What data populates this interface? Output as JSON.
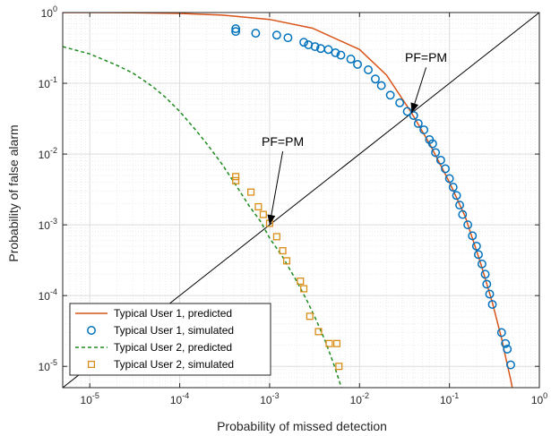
{
  "chart_data": {
    "type": "scatter",
    "title": "",
    "xlabel": "Probability of missed detection",
    "ylabel": "Probability of false alarm",
    "xscale": "log",
    "yscale": "log",
    "xlim": [
      5e-06,
      1
    ],
    "ylim": [
      5e-06,
      1
    ],
    "grid": true,
    "legend_position": "bottom-left",
    "xticks": [
      {
        "value": 1e-05,
        "base": "10",
        "exp": "-5"
      },
      {
        "value": 0.0001,
        "base": "10",
        "exp": "-4"
      },
      {
        "value": 0.001,
        "base": "10",
        "exp": "-3"
      },
      {
        "value": 0.01,
        "base": "10",
        "exp": "-2"
      },
      {
        "value": 0.1,
        "base": "10",
        "exp": "-1"
      },
      {
        "value": 1,
        "base": "10",
        "exp": "0"
      }
    ],
    "yticks": [
      {
        "value": 1e-05,
        "base": "10",
        "exp": "-5"
      },
      {
        "value": 0.0001,
        "base": "10",
        "exp": "-4"
      },
      {
        "value": 0.001,
        "base": "10",
        "exp": "-3"
      },
      {
        "value": 0.01,
        "base": "10",
        "exp": "-2"
      },
      {
        "value": 0.1,
        "base": "10",
        "exp": "-1"
      },
      {
        "value": 1,
        "base": "10",
        "exp": "0"
      }
    ],
    "reference_line": {
      "description": "PF = PM diagonal",
      "color": "#000000"
    },
    "annotations": [
      {
        "text": "PF=PM",
        "text_at": [
          0.0014,
          0.013
        ],
        "arrow_tip": [
          0.001,
          0.001
        ]
      },
      {
        "text": "PF=PM",
        "text_at": [
          0.055,
          0.2
        ],
        "arrow_tip": [
          0.038,
          0.038
        ]
      }
    ],
    "series": [
      {
        "name": "Typical User 1, predicted",
        "kind": "line",
        "style": "solid",
        "color": "#D95319",
        "x": [
          5e-06,
          1e-05,
          3e-05,
          0.0001,
          0.0003,
          0.001,
          0.003,
          0.01,
          0.02,
          0.038,
          0.06,
          0.1,
          0.15,
          0.22,
          0.3,
          0.38,
          0.43,
          0.48,
          0.5
        ],
        "y": [
          1.0,
          1.0,
          0.99,
          0.97,
          0.92,
          0.8,
          0.6,
          0.3,
          0.13,
          0.038,
          0.014,
          0.004,
          0.0013,
          0.0003,
          8e-05,
          2.5e-05,
          1.2e-05,
          6.5e-06,
          5e-06
        ]
      },
      {
        "name": "Typical User 1, simulated",
        "kind": "marker",
        "marker": "circle",
        "color": "#0072BD",
        "x": [
          0.00042,
          0.00042,
          0.0007,
          0.0012,
          0.0016,
          0.0024,
          0.0027,
          0.0032,
          0.0037,
          0.0045,
          0.0054,
          0.0062,
          0.008,
          0.0095,
          0.0125,
          0.015,
          0.0175,
          0.022,
          0.028,
          0.034,
          0.04,
          0.045,
          0.052,
          0.06,
          0.065,
          0.07,
          0.08,
          0.09,
          0.1,
          0.11,
          0.12,
          0.13,
          0.14,
          0.16,
          0.18,
          0.2,
          0.21,
          0.23,
          0.25,
          0.26,
          0.28,
          0.3,
          0.38,
          0.42,
          0.44,
          0.48
        ],
        "y": [
          0.59,
          0.54,
          0.51,
          0.48,
          0.44,
          0.38,
          0.35,
          0.33,
          0.31,
          0.3,
          0.27,
          0.25,
          0.22,
          0.185,
          0.155,
          0.115,
          0.093,
          0.068,
          0.053,
          0.04,
          0.035,
          0.027,
          0.022,
          0.016,
          0.014,
          0.0105,
          0.0082,
          0.0062,
          0.0045,
          0.0034,
          0.0026,
          0.0019,
          0.0014,
          0.001,
          0.0007,
          0.0005,
          0.00038,
          0.00028,
          0.0002,
          0.000145,
          0.000105,
          7.5e-05,
          3e-05,
          2.1e-05,
          1.75e-05,
          1.05e-05
        ]
      },
      {
        "name": "Typical User 2, predicted",
        "kind": "line",
        "style": "dashed",
        "color": "#1E8A1E",
        "x": [
          5e-06,
          1e-05,
          2e-05,
          3e-05,
          5e-05,
          7e-05,
          0.0001,
          0.00015,
          0.0002,
          0.0003,
          0.00045,
          0.0006,
          0.0008,
          0.001,
          0.0014,
          0.002,
          0.0026,
          0.0033,
          0.0042,
          0.0052,
          0.0063
        ],
        "y": [
          0.33,
          0.26,
          0.18,
          0.14,
          0.09,
          0.063,
          0.04,
          0.022,
          0.014,
          0.007,
          0.0032,
          0.0018,
          0.0011,
          0.00065,
          0.00035,
          0.00016,
          8.5e-05,
          4.5e-05,
          2.2e-05,
          1.05e-05,
          5e-06
        ]
      },
      {
        "name": "Typical User 2, simulated",
        "kind": "marker",
        "marker": "square",
        "color": "#D98C16",
        "x": [
          0.00042,
          0.00042,
          0.00062,
          0.00075,
          0.00085,
          0.001,
          0.0012,
          0.0014,
          0.00155,
          0.0022,
          0.0024,
          0.0028,
          0.0035,
          0.0046,
          0.0056,
          0.0059
        ],
        "y": [
          0.0048,
          0.0042,
          0.0029,
          0.0018,
          0.0014,
          0.00105,
          0.00068,
          0.00043,
          0.00031,
          0.00016,
          0.000125,
          5.1e-05,
          3.1e-05,
          2.1e-05,
          2.1e-05,
          1e-05
        ]
      }
    ]
  }
}
